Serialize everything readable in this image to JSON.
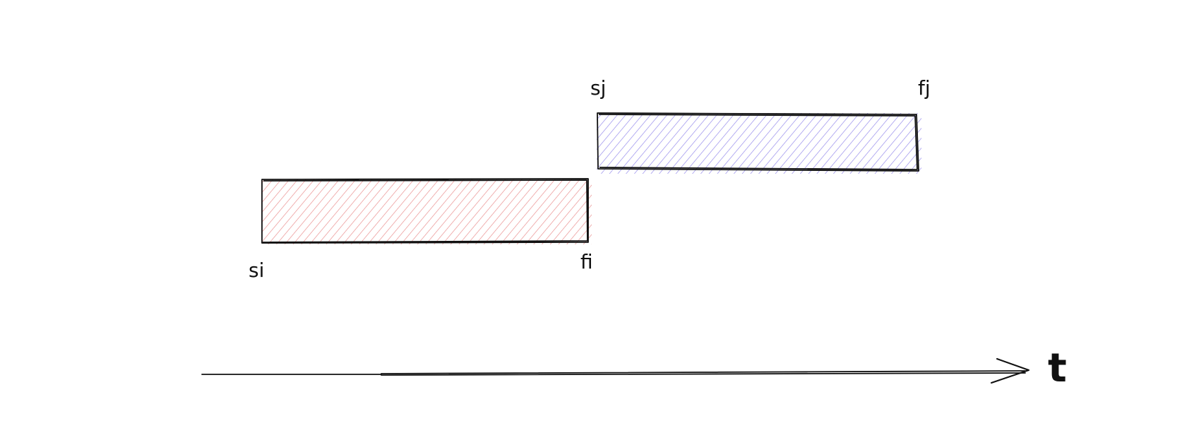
{
  "intervals": [
    {
      "id": "i",
      "start_label": "si",
      "finish_label": "fi",
      "fill_color": "#e57373"
    },
    {
      "id": "j",
      "start_label": "sj",
      "finish_label": "fj",
      "fill_color": "#7b6ee6"
    }
  ],
  "axis": {
    "label": "t",
    "line_color": "#111111"
  }
}
